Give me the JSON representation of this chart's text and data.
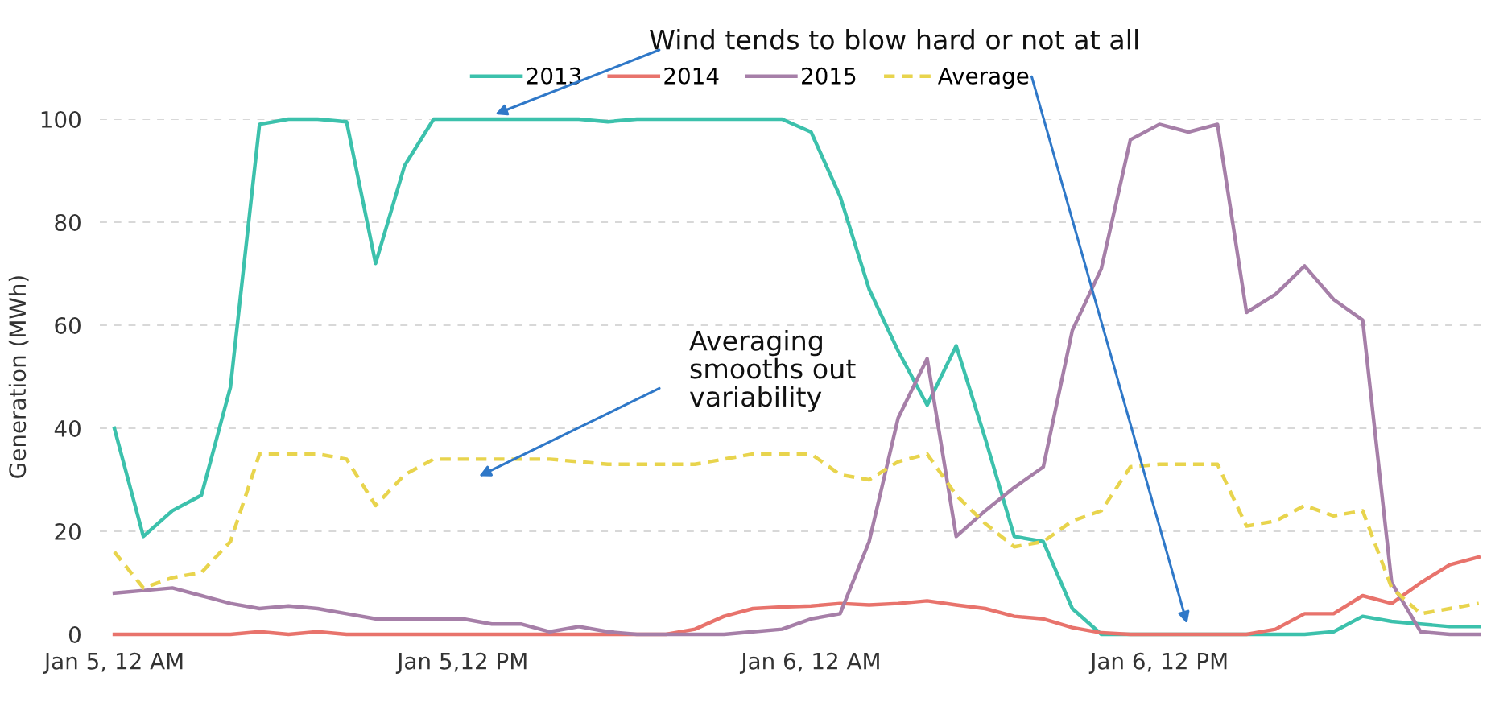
{
  "chart_data": {
    "type": "line",
    "ylabel": "Generation (MWh)",
    "categories": [
      "Jan 5, 12 AM",
      null,
      null,
      null,
      null,
      null,
      null,
      null,
      null,
      null,
      null,
      null,
      "Jan 5,12 PM",
      null,
      null,
      null,
      null,
      null,
      null,
      null,
      null,
      null,
      null,
      null,
      "Jan 6, 12 AM",
      null,
      null,
      null,
      null,
      null,
      null,
      null,
      null,
      null,
      null,
      null,
      "Jan 6, 12 PM",
      null,
      null,
      null,
      null,
      null,
      null,
      null,
      null,
      null,
      null,
      null
    ],
    "ylim": [
      0,
      100
    ],
    "yticks": [
      0,
      20,
      40,
      60,
      80,
      100
    ],
    "grid": "y",
    "legend": "top",
    "marker": "none",
    "series": [
      {
        "name": "2013",
        "color": "#3cc1ac",
        "values": [
          40,
          19,
          24,
          27,
          48,
          99,
          100,
          100,
          99.5,
          72,
          91,
          100,
          100,
          100,
          100,
          100,
          100,
          99.5,
          100,
          100,
          100,
          100,
          100,
          100,
          97.5,
          85,
          67,
          55,
          44.5,
          56,
          38,
          19,
          18,
          5,
          0,
          0,
          0,
          0,
          0,
          0,
          0,
          0,
          0.5,
          3.5,
          2.5,
          2,
          1.5,
          1.5
        ]
      },
      {
        "name": "2014",
        "color": "#e8736c",
        "values": [
          0,
          0,
          0,
          0,
          0,
          0.5,
          0,
          0.5,
          0,
          0,
          0,
          0,
          0,
          0,
          0,
          0,
          0,
          0,
          0,
          0,
          1,
          3.5,
          5,
          5.3,
          5.5,
          6,
          5.7,
          6,
          6.5,
          5.7,
          5,
          3.5,
          3,
          1.3,
          0.3,
          0,
          0,
          0,
          0,
          0,
          1,
          4,
          4,
          7.5,
          6,
          10,
          13.5,
          15
        ]
      },
      {
        "name": "2015",
        "color": "#a67fa8",
        "values": [
          8,
          8.5,
          9,
          7.5,
          6,
          5,
          5.5,
          5,
          4,
          3,
          3,
          3,
          3,
          2,
          2,
          0.5,
          1.5,
          0.5,
          0,
          0,
          0,
          0,
          0.5,
          1,
          3,
          4,
          18,
          42,
          53.5,
          19,
          24,
          28.5,
          32.5,
          59,
          71,
          96,
          99,
          97.5,
          99,
          62.5,
          66,
          71.5,
          65,
          61,
          10,
          0.5,
          0,
          0
        ]
      },
      {
        "name": "Average",
        "color": "#e8d44d",
        "line_style": "dashed",
        "values": [
          16,
          9,
          11,
          12,
          18,
          35,
          35,
          35,
          34,
          25,
          31,
          34,
          34,
          34,
          34,
          34,
          33.5,
          33,
          33,
          33,
          33,
          34,
          35,
          35,
          35,
          31,
          30,
          33.5,
          35,
          27,
          21.5,
          17,
          18,
          22,
          24,
          32.5,
          33,
          33,
          33,
          21,
          22,
          25,
          23,
          24,
          9,
          4,
          5,
          6
        ]
      }
    ],
    "annotations": [
      "Wind tends to blow hard or not at all",
      "Averaging\nsmooths out\nvariability"
    ]
  }
}
